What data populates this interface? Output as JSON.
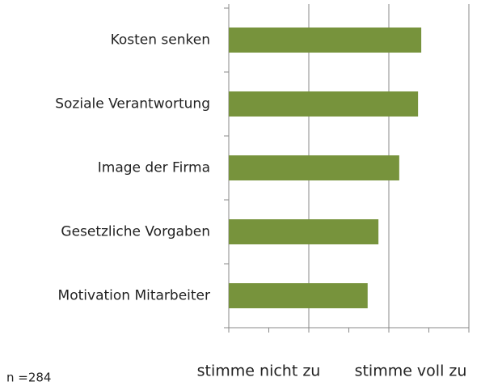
{
  "chart_data": {
    "type": "barh",
    "categories": [
      "Kosten senken",
      "Soziale Verantwortung",
      "Image der Firma",
      "Gesetzliche Vorgaben",
      "Motivation Mitarbeiter"
    ],
    "values": [
      4.81,
      4.73,
      4.26,
      3.74,
      3.47
    ],
    "color": "#77933c",
    "xlim": [
      0,
      6
    ],
    "xticks": [
      0,
      2,
      4,
      6
    ],
    "xminorticks": [
      1,
      3,
      5
    ],
    "grid": true,
    "x_labels": [
      "stimme nicht zu",
      "stimme voll zu"
    ],
    "annotation": "n =284"
  }
}
